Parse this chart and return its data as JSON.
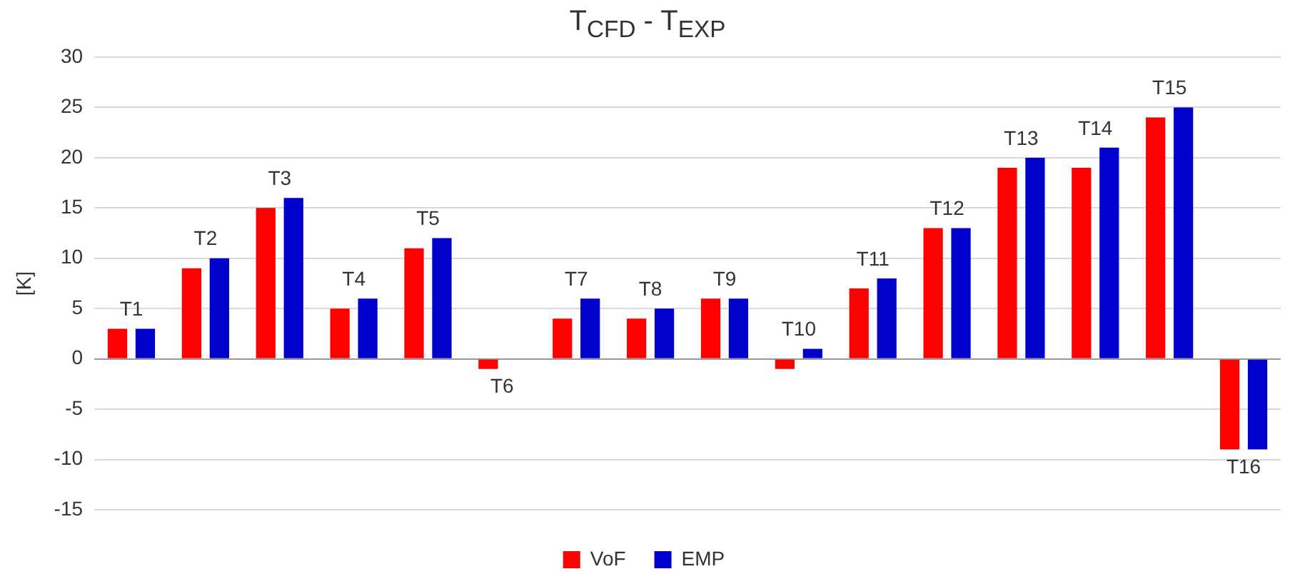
{
  "chart_data": {
    "type": "bar",
    "title": "T$_{CFD}$ - T$_{EXP}$",
    "ylabel": "[K]",
    "categories": [
      "T1",
      "T2",
      "T3",
      "T4",
      "T5",
      "T6",
      "T7",
      "T8",
      "T9",
      "T10",
      "T11",
      "T12",
      "T13",
      "T14",
      "T15",
      "T16"
    ],
    "series": [
      {
        "name": "VoF",
        "color": "#ff0000",
        "values": [
          3,
          9,
          15,
          5,
          11,
          -1,
          4,
          4,
          6,
          -1,
          7,
          13,
          19,
          19,
          24,
          -9
        ]
      },
      {
        "name": "EMP",
        "color": "#0000cc",
        "values": [
          3,
          10,
          16,
          6,
          12,
          0,
          6,
          5,
          6,
          1,
          8,
          13,
          20,
          21,
          25,
          -9
        ]
      }
    ],
    "ylim": [
      -15,
      30
    ],
    "yticks": [
      -15,
      -10,
      -5,
      0,
      5,
      10,
      15,
      20,
      25,
      30
    ],
    "grid": "y",
    "legend": "bottom",
    "tick_labels": "y"
  }
}
